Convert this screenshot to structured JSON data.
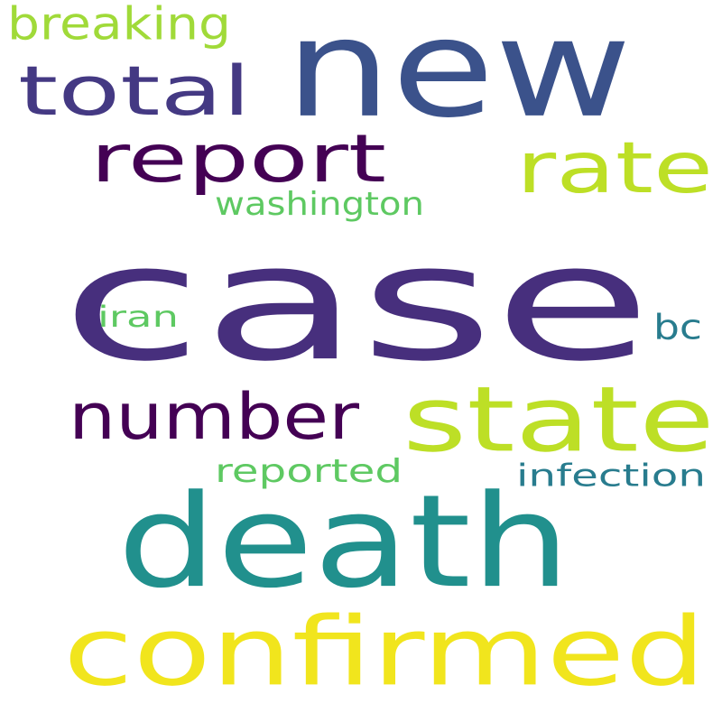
{
  "words": [
    {
      "text": "case",
      "color": "#472f7d"
    },
    {
      "text": "new",
      "color": "#3b528b"
    },
    {
      "text": "death",
      "color": "#21908d"
    },
    {
      "text": "confirmed",
      "color": "#f1e51d"
    },
    {
      "text": "state",
      "color": "#bddf26"
    },
    {
      "text": "number",
      "color": "#440154"
    },
    {
      "text": "report",
      "color": "#440154"
    },
    {
      "text": "total",
      "color": "#443983"
    },
    {
      "text": "rate",
      "color": "#bddf26"
    },
    {
      "text": "breaking",
      "color": "#a0da39"
    },
    {
      "text": "washington",
      "color": "#5ec962"
    },
    {
      "text": "reported",
      "color": "#5ec962"
    },
    {
      "text": "infection",
      "color": "#287c8e"
    },
    {
      "text": "iran",
      "color": "#5ec962"
    },
    {
      "text": "bc",
      "color": "#287c8e"
    }
  ]
}
